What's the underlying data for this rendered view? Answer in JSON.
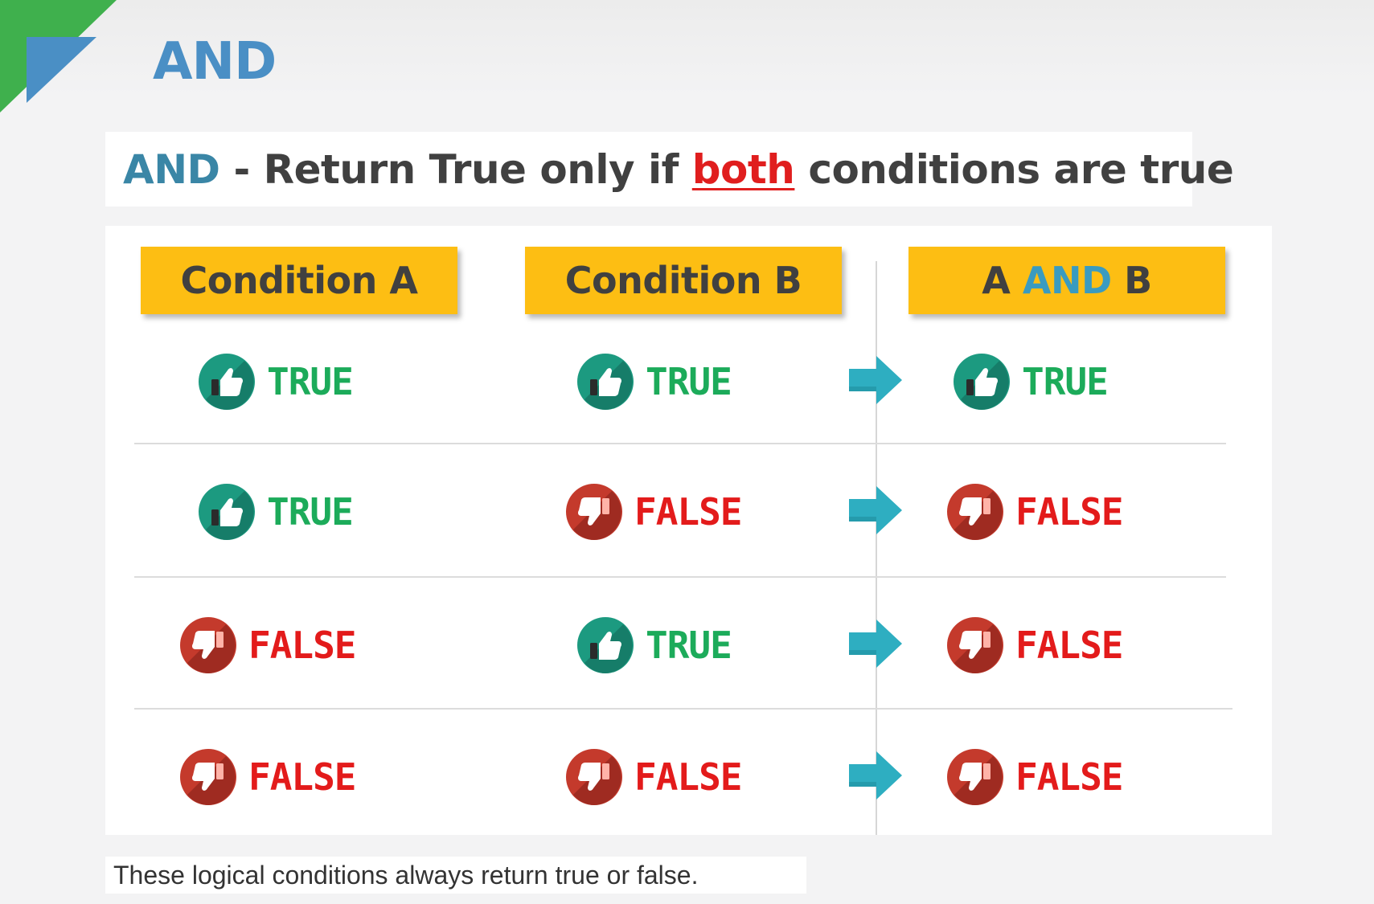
{
  "slide": {
    "title": "AND",
    "accent_colors": {
      "corner_green": "#3fb04d",
      "corner_blue": "#4a8fc5"
    }
  },
  "subtitle": {
    "keyword": "AND",
    "part1": " - Return True only if ",
    "emphasis": "both",
    "part2": " conditions are true"
  },
  "table": {
    "headers": [
      {
        "text": "Condition A"
      },
      {
        "text": "Condition B"
      },
      {
        "prefix": "A ",
        "keyword": "AND",
        "suffix": " B"
      }
    ],
    "rows": [
      {
        "a": "TRUE",
        "b": "TRUE",
        "result": "TRUE"
      },
      {
        "a": "TRUE",
        "b": "FALSE",
        "result": "FALSE"
      },
      {
        "a": "FALSE",
        "b": "TRUE",
        "result": "FALSE"
      },
      {
        "a": "FALSE",
        "b": "FALSE",
        "result": "FALSE"
      }
    ],
    "icons": {
      "true": "thumbs-up-icon",
      "false": "thumbs-down-icon",
      "between": "arrow-right-icon"
    },
    "colors": {
      "true": "#1cab5a",
      "false": "#e31b1b",
      "header_bg": "#fdbe13",
      "arrow": "#2eaec1"
    }
  },
  "footnote": "These logical conditions always return true or false."
}
